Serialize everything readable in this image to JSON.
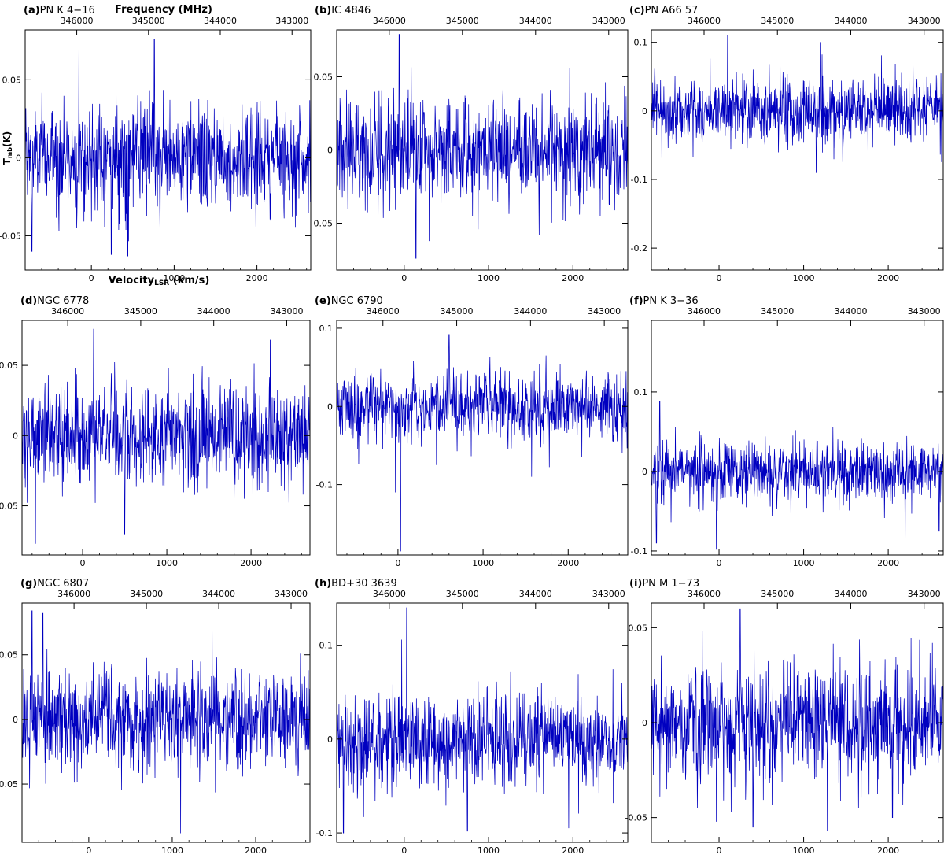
{
  "figure": {
    "xlabel": "Velocity",
    "xlabel_sub": "LSR",
    "xlabel_units": "(km/s)",
    "ylabel": "T",
    "ylabel_sub": "mb",
    "ylabel_units": "(K)",
    "top_axis_label": "Frequency (MHz)",
    "line_color": "#0000c0"
  },
  "chart_data": [
    {
      "type": "line",
      "panel_label": "(a)",
      "title": "PN K 4−16",
      "xlim": [
        -800,
        2650
      ],
      "ylim": [
        -0.072,
        0.082
      ],
      "xticks": [
        0,
        1000,
        2000
      ],
      "yticks": [
        -0.05,
        0,
        0.05
      ],
      "yticklabels": [
        "-0.05",
        "0",
        "0.05"
      ],
      "top_ticks": [
        346000,
        345000,
        344000,
        343000
      ],
      "noise_sigma": 0.02,
      "spikes": [
        {
          "x": -150,
          "y": 0.077
        },
        {
          "x": 760,
          "y": 0.076
        },
        {
          "x": 240,
          "y": -0.062
        },
        {
          "x": 440,
          "y": -0.063
        },
        {
          "x": -720,
          "y": -0.06
        }
      ]
    },
    {
      "type": "line",
      "panel_label": "(b)",
      "title": "IC 4846",
      "xlim": [
        -800,
        2650
      ],
      "ylim": [
        -0.082,
        0.082
      ],
      "xticks": [
        0,
        1000,
        2000
      ],
      "yticks": [
        -0.05,
        0,
        0.05
      ],
      "yticklabels": [
        "-0.05",
        "0",
        "0.05"
      ],
      "top_ticks": [
        346000,
        345000,
        344000,
        343000
      ],
      "noise_sigma": 0.021,
      "spikes": [
        {
          "x": -60,
          "y": 0.079
        },
        {
          "x": 140,
          "y": -0.074
        },
        {
          "x": 300,
          "y": -0.062
        },
        {
          "x": 1600,
          "y": -0.058
        }
      ]
    },
    {
      "type": "line",
      "panel_label": "(c)",
      "title": "PN A66 57",
      "xlim": [
        -800,
        2650
      ],
      "ylim": [
        -0.232,
        0.118
      ],
      "xticks": [
        0,
        1000,
        2000
      ],
      "yticks": [
        -0.2,
        -0.1,
        0,
        0.1
      ],
      "yticklabels": [
        "-0.2",
        "-0.1",
        "0",
        "0.1"
      ],
      "top_ticks": [
        346000,
        345000,
        344000,
        343000
      ],
      "noise_sigma": 0.03,
      "spikes": [
        {
          "x": 100,
          "y": 0.11
        },
        {
          "x": 1200,
          "y": 0.1
        },
        {
          "x": 1150,
          "y": -0.09
        }
      ]
    },
    {
      "type": "line",
      "panel_label": "(d)",
      "title": "NGC 6778",
      "xlim": [
        -720,
        2700
      ],
      "ylim": [
        -0.085,
        0.082
      ],
      "xticks": [
        0,
        1000,
        2000
      ],
      "yticks": [
        -0.05,
        0,
        0.05
      ],
      "yticklabels": [
        "-0.05",
        "0",
        "0.05"
      ],
      "top_ticks": [
        346000,
        345000,
        344000,
        343000
      ],
      "noise_sigma": 0.021,
      "spikes": [
        {
          "x": 130,
          "y": 0.076
        },
        {
          "x": -560,
          "y": -0.077
        },
        {
          "x": 500,
          "y": -0.07
        },
        {
          "x": 2230,
          "y": 0.068
        }
      ]
    },
    {
      "type": "line",
      "panel_label": "(e)",
      "title": "NGC 6790",
      "xlim": [
        -720,
        2700
      ],
      "ylim": [
        -0.19,
        0.11
      ],
      "xticks": [
        0,
        1000,
        2000
      ],
      "yticks": [
        -0.1,
        0,
        0.1
      ],
      "yticklabels": [
        "-0.1",
        "0",
        "0.1"
      ],
      "top_ticks": [
        346000,
        345000,
        344000,
        343000
      ],
      "noise_sigma": 0.026,
      "spikes": [
        {
          "x": 30,
          "y": -0.185
        },
        {
          "x": 600,
          "y": 0.092
        },
        {
          "x": -30,
          "y": -0.11
        },
        {
          "x": 1570,
          "y": -0.09
        }
      ]
    },
    {
      "type": "line",
      "panel_label": "(f)",
      "title": "PN K 3−36",
      "xlim": [
        -800,
        2650
      ],
      "ylim": [
        -0.105,
        0.19
      ],
      "xticks": [
        0,
        1000,
        2000
      ],
      "yticks": [
        -0.1,
        0,
        0.1
      ],
      "yticklabels": [
        "-0.1",
        "0",
        "0.1"
      ],
      "top_ticks": [
        346000,
        345000,
        344000,
        343000
      ],
      "noise_sigma": 0.023,
      "spikes": [
        {
          "x": -700,
          "y": 0.088
        },
        {
          "x": -740,
          "y": -0.09
        },
        {
          "x": -30,
          "y": -0.098
        },
        {
          "x": 2200,
          "y": -0.093
        },
        {
          "x": 2600,
          "y": -0.075
        }
      ]
    },
    {
      "type": "line",
      "panel_label": "(g)",
      "title": "NGC 6807",
      "xlim": [
        -800,
        2650
      ],
      "ylim": [
        -0.095,
        0.09
      ],
      "xticks": [
        0,
        1000,
        2000
      ],
      "yticks": [
        -0.05,
        0,
        0.05
      ],
      "yticklabels": [
        "-0.05",
        "0",
        "0.05"
      ],
      "top_ticks": [
        346000,
        345000,
        344000,
        343000
      ],
      "noise_sigma": 0.023,
      "spikes": [
        {
          "x": 1100,
          "y": -0.088
        },
        {
          "x": -680,
          "y": 0.084
        },
        {
          "x": -550,
          "y": 0.082
        }
      ]
    },
    {
      "type": "line",
      "panel_label": "(h)",
      "title": "BD+30 3639",
      "xlim": [
        -800,
        2650
      ],
      "ylim": [
        -0.11,
        0.145
      ],
      "xticks": [
        0,
        1000,
        2000
      ],
      "yticks": [
        -0.1,
        0,
        0.1
      ],
      "yticklabels": [
        "-0.1",
        "0",
        "0.1"
      ],
      "top_ticks": [
        346000,
        345000,
        344000,
        343000
      ],
      "noise_sigma": 0.03,
      "spikes": [
        {
          "x": 30,
          "y": 0.14
        },
        {
          "x": -30,
          "y": 0.106
        },
        {
          "x": 750,
          "y": -0.098
        },
        {
          "x": 1950,
          "y": -0.095
        },
        {
          "x": -720,
          "y": -0.1
        }
      ]
    },
    {
      "type": "line",
      "panel_label": "(i)",
      "title": "PN M 1−73",
      "xlim": [
        -800,
        2650
      ],
      "ylim": [
        -0.063,
        0.063
      ],
      "xticks": [
        0,
        1000,
        2000
      ],
      "yticks": [
        -0.05,
        0,
        0.05
      ],
      "yticklabels": [
        "-0.05",
        "0",
        "0.05"
      ],
      "top_ticks": [
        346000,
        345000,
        344000,
        343000
      ],
      "noise_sigma": 0.018,
      "spikes": [
        {
          "x": -30,
          "y": -0.052
        },
        {
          "x": 400,
          "y": -0.055
        },
        {
          "x": 250,
          "y": 0.06
        },
        {
          "x": 2050,
          "y": -0.05
        }
      ]
    }
  ]
}
